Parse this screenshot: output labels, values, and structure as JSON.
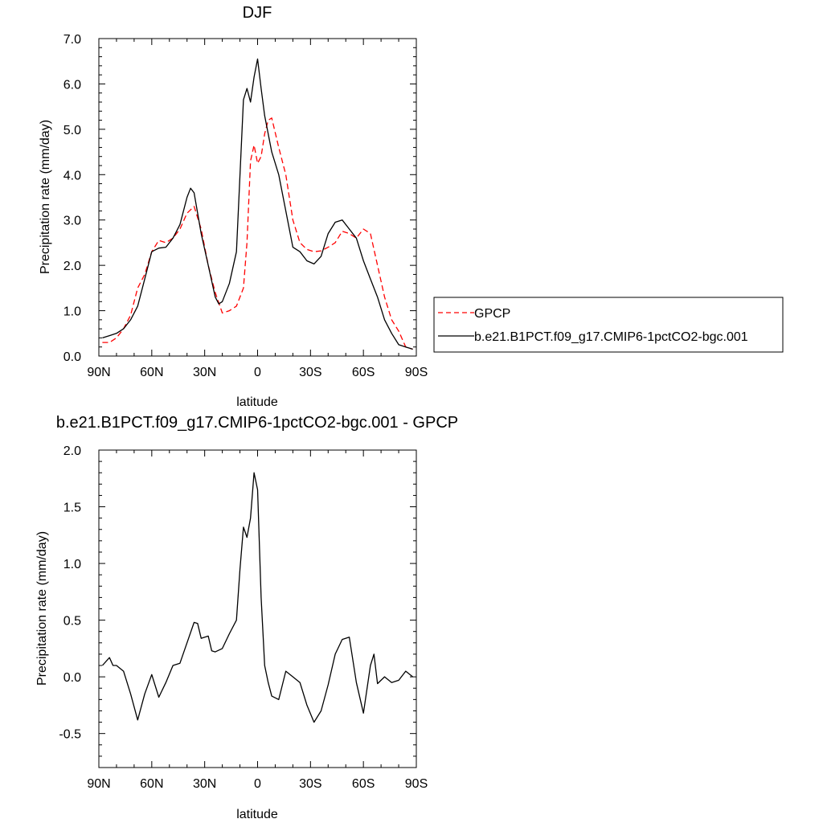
{
  "chart_data": [
    {
      "type": "line",
      "title": "DJF",
      "xlabel": "latitude",
      "ylabel": "Precipitation rate (mm/day)",
      "xlim": [
        90,
        -90
      ],
      "ylim": [
        0,
        7
      ],
      "x_tick_values": [
        90,
        60,
        30,
        0,
        -30,
        -60,
        -90
      ],
      "x_tick_labels": [
        "90N",
        "60N",
        "30N",
        "0",
        "30S",
        "60S",
        "90S"
      ],
      "y_tick_values": [
        0,
        1,
        2,
        3,
        4,
        5,
        6,
        7
      ],
      "y_tick_labels": [
        "0.0",
        "1.0",
        "2.0",
        "3.0",
        "4.0",
        "5.0",
        "6.0",
        "7.0"
      ],
      "grid": false,
      "legend_position": "outside-right",
      "series": [
        {
          "name": "GPCP",
          "color": "#ff0000",
          "dash": "dashed",
          "x": [
            88,
            84,
            80,
            76,
            72,
            68,
            64,
            60,
            56,
            52,
            48,
            44,
            40,
            36,
            32,
            28,
            24,
            20,
            16,
            12,
            8,
            6,
            4,
            2,
            0,
            -2,
            -4,
            -6,
            -8,
            -12,
            -16,
            -20,
            -24,
            -28,
            -32,
            -36,
            -40,
            -44,
            -48,
            -52,
            -56,
            -60,
            -64,
            -68,
            -72,
            -76,
            -80,
            -84,
            -88
          ],
          "y": [
            0.3,
            0.3,
            0.4,
            0.6,
            0.9,
            1.5,
            1.8,
            2.3,
            2.55,
            2.5,
            2.6,
            2.8,
            3.15,
            3.3,
            2.8,
            2.0,
            1.4,
            0.95,
            1.0,
            1.1,
            1.5,
            2.5,
            4.3,
            4.65,
            4.25,
            4.4,
            4.9,
            5.2,
            5.25,
            4.6,
            4.0,
            3.0,
            2.5,
            2.35,
            2.3,
            2.32,
            2.4,
            2.5,
            2.75,
            2.7,
            2.6,
            2.8,
            2.7,
            2.0,
            1.3,
            0.8,
            0.55,
            0.2,
            0.15
          ]
        },
        {
          "name": "b.e21.B1PCT.f09_g17.CMIP6-1pctCO2-bgc.001",
          "color": "#000000",
          "dash": "solid",
          "x": [
            88,
            84,
            80,
            76,
            72,
            68,
            64,
            60,
            56,
            52,
            48,
            44,
            40,
            38,
            36,
            32,
            28,
            24,
            22,
            20,
            16,
            12,
            8,
            6,
            4,
            2,
            0,
            -2,
            -4,
            -6,
            -8,
            -12,
            -16,
            -20,
            -24,
            -28,
            -32,
            -36,
            -40,
            -44,
            -48,
            -52,
            -56,
            -60,
            -64,
            -68,
            -72,
            -76,
            -80,
            -84,
            -88
          ],
          "y": [
            0.4,
            0.45,
            0.5,
            0.6,
            0.8,
            1.1,
            1.7,
            2.3,
            2.38,
            2.4,
            2.6,
            2.9,
            3.5,
            3.7,
            3.6,
            2.7,
            2.0,
            1.3,
            1.15,
            1.2,
            1.6,
            2.3,
            5.65,
            5.9,
            5.6,
            6.15,
            6.55,
            5.9,
            5.3,
            4.9,
            4.5,
            4.0,
            3.2,
            2.4,
            2.3,
            2.1,
            2.03,
            2.2,
            2.7,
            2.95,
            3.0,
            2.8,
            2.6,
            2.1,
            1.7,
            1.3,
            0.8,
            0.5,
            0.25,
            0.2,
            0.15
          ]
        }
      ]
    },
    {
      "type": "line",
      "title": "b.e21.B1PCT.f09_g17.CMIP6-1pctCO2-bgc.001 - GPCP",
      "xlabel": "latitude",
      "ylabel": "Precipitation rate (mm/day)",
      "xlim": [
        90,
        -90
      ],
      "ylim": [
        -0.8,
        2.0
      ],
      "x_tick_values": [
        90,
        60,
        30,
        0,
        -30,
        -60,
        -90
      ],
      "x_tick_labels": [
        "90N",
        "60N",
        "30N",
        "0",
        "30S",
        "60S",
        "90S"
      ],
      "y_tick_values": [
        -0.5,
        0,
        0.5,
        1.0,
        1.5,
        2.0
      ],
      "y_tick_labels": [
        "-0.5",
        "0.0",
        "0.5",
        "1.0",
        "1.5",
        "2.0"
      ],
      "grid": false,
      "series": [
        {
          "color": "#000000",
          "dash": "solid",
          "x": [
            88,
            84,
            82,
            80,
            76,
            72,
            68,
            64,
            60,
            56,
            52,
            48,
            44,
            40,
            36,
            34,
            32,
            28,
            26,
            24,
            20,
            16,
            12,
            10,
            8,
            6,
            4,
            2,
            0,
            -2,
            -4,
            -6,
            -8,
            -12,
            -16,
            -20,
            -24,
            -28,
            -32,
            -36,
            -40,
            -44,
            -48,
            -52,
            -56,
            -60,
            -64,
            -66,
            -68,
            -72,
            -76,
            -80,
            -84,
            -88
          ],
          "y": [
            0.1,
            0.17,
            0.1,
            0.1,
            0.05,
            -0.15,
            -0.38,
            -0.15,
            0.02,
            -0.18,
            -0.05,
            0.1,
            0.12,
            0.3,
            0.48,
            0.47,
            0.34,
            0.36,
            0.23,
            0.22,
            0.25,
            0.38,
            0.5,
            0.95,
            1.32,
            1.23,
            1.4,
            1.8,
            1.65,
            0.7,
            0.1,
            -0.05,
            -0.17,
            -0.2,
            0.05,
            0.0,
            -0.05,
            -0.25,
            -0.4,
            -0.3,
            -0.07,
            0.2,
            0.33,
            0.35,
            -0.05,
            -0.32,
            0.1,
            0.2,
            -0.06,
            0.0,
            -0.05,
            -0.03,
            0.05,
            0.0
          ]
        }
      ]
    }
  ]
}
